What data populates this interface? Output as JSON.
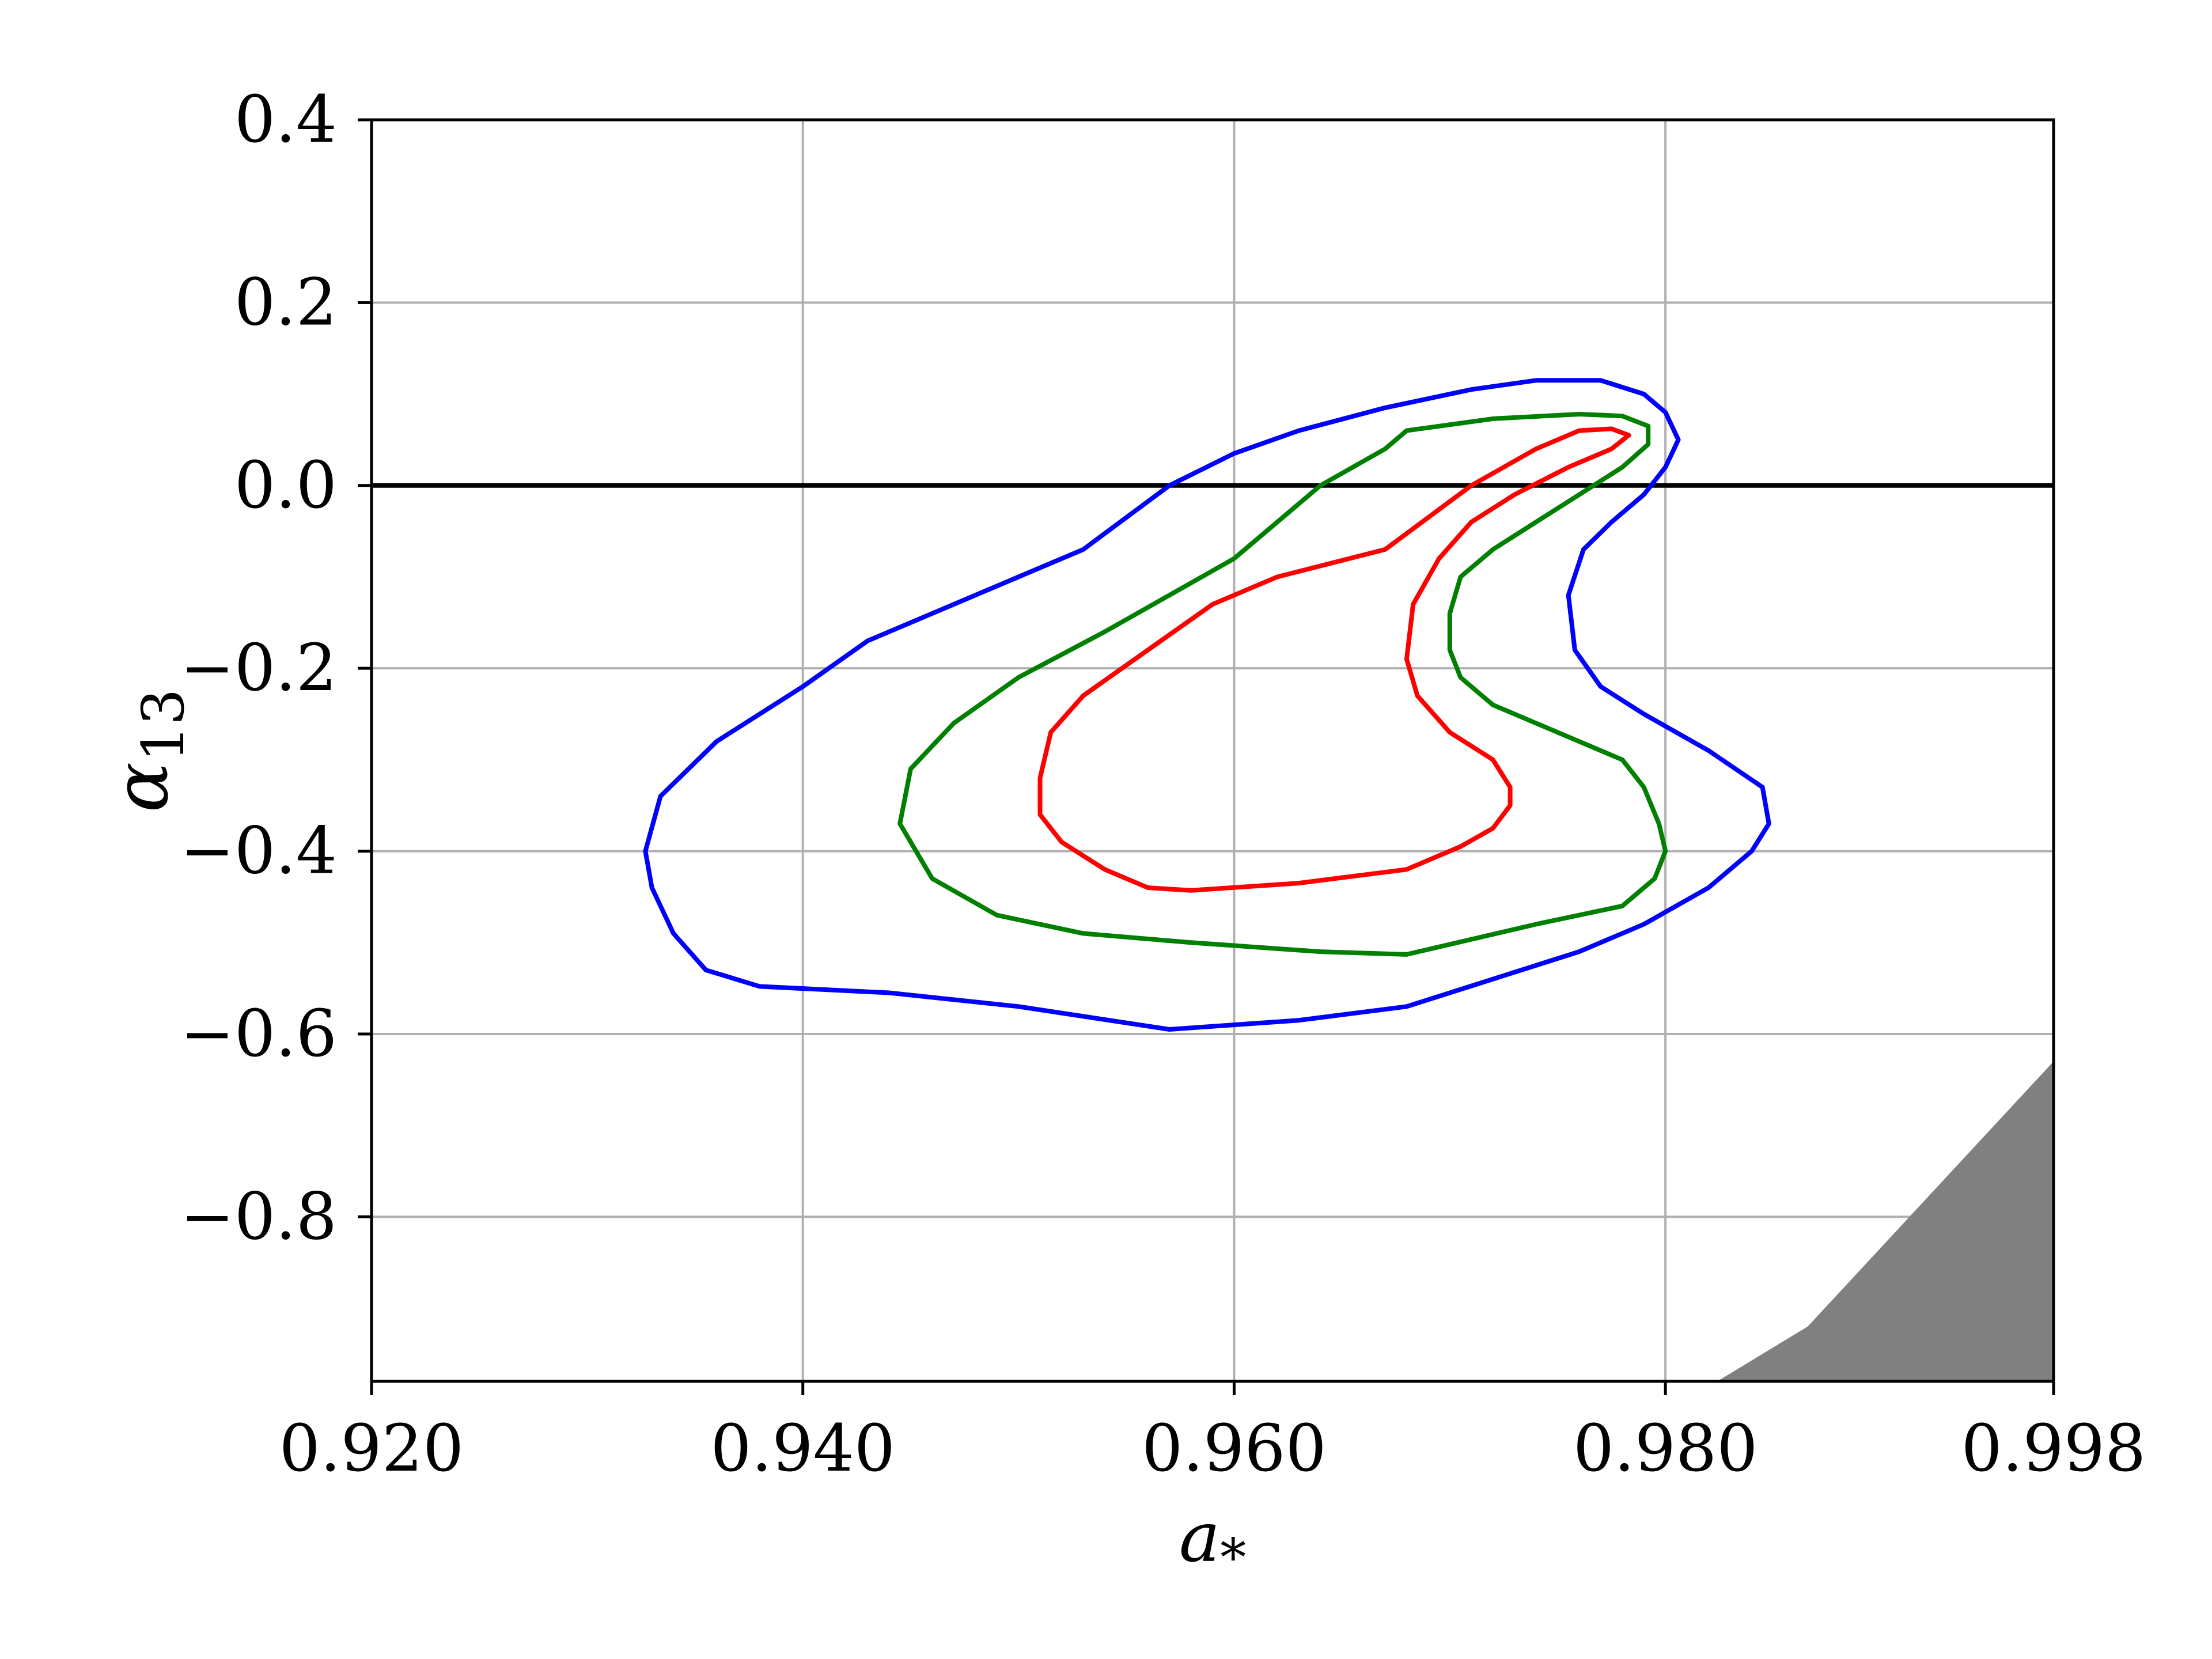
{
  "chart_data": {
    "type": "line",
    "title": "",
    "xlabel": "a",
    "xlabel_sub": "*",
    "ylabel": "α",
    "ylabel_sub": "13",
    "xlim": [
      0.92,
      0.998
    ],
    "ylim": [
      -0.98,
      0.4
    ],
    "xticks": [
      0.92,
      0.94,
      0.96,
      0.98,
      0.998
    ],
    "xtick_labels": [
      "0.920",
      "0.940",
      "0.960",
      "0.980",
      "0.998"
    ],
    "yticks": [
      0.4,
      0.2,
      0.0,
      -0.2,
      -0.4,
      -0.6,
      -0.8
    ],
    "ytick_labels": [
      "0.4",
      "0.2",
      "0.0",
      "−0.2",
      "−0.4",
      "−0.6",
      "−0.8"
    ],
    "grid": true,
    "hline": {
      "y": 0.0,
      "color": "#000000"
    },
    "shaded_region": {
      "color": "#808080",
      "points": [
        [
          0.9824,
          -0.98
        ],
        [
          0.9866,
          -0.92
        ],
        [
          0.998,
          -0.63
        ],
        [
          0.998,
          -0.98
        ]
      ]
    },
    "series": [
      {
        "color": "#0000ff",
        "points": [
          [
            0.957,
            0.0
          ],
          [
            0.96,
            0.035
          ],
          [
            0.963,
            0.06
          ],
          [
            0.967,
            0.085
          ],
          [
            0.971,
            0.105
          ],
          [
            0.974,
            0.115
          ],
          [
            0.977,
            0.115
          ],
          [
            0.979,
            0.1
          ],
          [
            0.98,
            0.08
          ],
          [
            0.9806,
            0.05
          ],
          [
            0.98,
            0.02
          ],
          [
            0.979,
            -0.01
          ],
          [
            0.9775,
            -0.04
          ],
          [
            0.9762,
            -0.07
          ],
          [
            0.9755,
            -0.12
          ],
          [
            0.9758,
            -0.18
          ],
          [
            0.977,
            -0.22
          ],
          [
            0.979,
            -0.25
          ],
          [
            0.982,
            -0.29
          ],
          [
            0.9845,
            -0.33
          ],
          [
            0.9848,
            -0.37
          ],
          [
            0.984,
            -0.4
          ],
          [
            0.982,
            -0.44
          ],
          [
            0.979,
            -0.48
          ],
          [
            0.976,
            -0.51
          ],
          [
            0.972,
            -0.54
          ],
          [
            0.968,
            -0.57
          ],
          [
            0.963,
            -0.585
          ],
          [
            0.957,
            -0.595
          ],
          [
            0.95,
            -0.57
          ],
          [
            0.944,
            -0.555
          ],
          [
            0.938,
            -0.548
          ],
          [
            0.9355,
            -0.53
          ],
          [
            0.934,
            -0.49
          ],
          [
            0.933,
            -0.44
          ],
          [
            0.9327,
            -0.4
          ],
          [
            0.9334,
            -0.34
          ],
          [
            0.936,
            -0.28
          ],
          [
            0.94,
            -0.22
          ],
          [
            0.943,
            -0.17
          ],
          [
            0.948,
            -0.12
          ],
          [
            0.953,
            -0.07
          ],
          [
            0.957,
            0.0
          ]
        ]
      },
      {
        "color": "#008000",
        "points": [
          [
            0.964,
            0.0
          ],
          [
            0.967,
            0.04
          ],
          [
            0.968,
            0.06
          ],
          [
            0.972,
            0.073
          ],
          [
            0.976,
            0.078
          ],
          [
            0.978,
            0.076
          ],
          [
            0.9792,
            0.065
          ],
          [
            0.9792,
            0.045
          ],
          [
            0.978,
            0.02
          ],
          [
            0.976,
            -0.01
          ],
          [
            0.974,
            -0.04
          ],
          [
            0.972,
            -0.07
          ],
          [
            0.9705,
            -0.1
          ],
          [
            0.97,
            -0.14
          ],
          [
            0.97,
            -0.18
          ],
          [
            0.9705,
            -0.21
          ],
          [
            0.972,
            -0.24
          ],
          [
            0.975,
            -0.27
          ],
          [
            0.978,
            -0.3
          ],
          [
            0.979,
            -0.33
          ],
          [
            0.9797,
            -0.37
          ],
          [
            0.98,
            -0.4
          ],
          [
            0.9795,
            -0.43
          ],
          [
            0.978,
            -0.46
          ],
          [
            0.974,
            -0.48
          ],
          [
            0.968,
            -0.513
          ],
          [
            0.964,
            -0.51
          ],
          [
            0.958,
            -0.5
          ],
          [
            0.953,
            -0.49
          ],
          [
            0.949,
            -0.47
          ],
          [
            0.946,
            -0.43
          ],
          [
            0.9445,
            -0.37
          ],
          [
            0.945,
            -0.31
          ],
          [
            0.947,
            -0.26
          ],
          [
            0.95,
            -0.21
          ],
          [
            0.954,
            -0.16
          ],
          [
            0.96,
            -0.08
          ],
          [
            0.964,
            0.0
          ]
        ]
      },
      {
        "color": "#ff0000",
        "points": [
          [
            0.971,
            0.0
          ],
          [
            0.974,
            0.04
          ],
          [
            0.976,
            0.06
          ],
          [
            0.9775,
            0.062
          ],
          [
            0.9783,
            0.055
          ],
          [
            0.9775,
            0.04
          ],
          [
            0.9755,
            0.02
          ],
          [
            0.973,
            -0.01
          ],
          [
            0.971,
            -0.04
          ],
          [
            0.9695,
            -0.08
          ],
          [
            0.9683,
            -0.13
          ],
          [
            0.968,
            -0.19
          ],
          [
            0.9685,
            -0.23
          ],
          [
            0.97,
            -0.27
          ],
          [
            0.972,
            -0.3
          ],
          [
            0.9728,
            -0.33
          ],
          [
            0.9728,
            -0.35
          ],
          [
            0.972,
            -0.375
          ],
          [
            0.9705,
            -0.395
          ],
          [
            0.968,
            -0.42
          ],
          [
            0.963,
            -0.435
          ],
          [
            0.958,
            -0.443
          ],
          [
            0.956,
            -0.44
          ],
          [
            0.954,
            -0.42
          ],
          [
            0.952,
            -0.39
          ],
          [
            0.951,
            -0.36
          ],
          [
            0.951,
            -0.32
          ],
          [
            0.9515,
            -0.27
          ],
          [
            0.953,
            -0.23
          ],
          [
            0.956,
            -0.18
          ],
          [
            0.959,
            -0.13
          ],
          [
            0.962,
            -0.1
          ],
          [
            0.967,
            -0.07
          ],
          [
            0.971,
            0.0
          ]
        ]
      }
    ]
  }
}
